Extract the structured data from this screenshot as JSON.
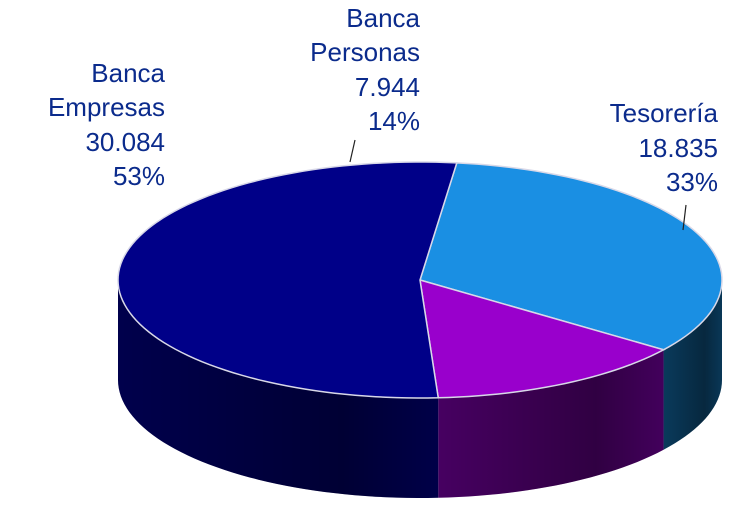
{
  "chart_data": {
    "type": "pie3d",
    "categories": [
      "Tesorería",
      "Banca Personas",
      "Banca Empresas"
    ],
    "values": [
      18.835,
      7.944,
      30.084
    ],
    "percents": [
      33,
      14,
      53
    ],
    "percent_labels": [
      "33%",
      "14%",
      "53%"
    ],
    "colors": [
      "#1a8fe3",
      "#9900cc",
      "#000088"
    ],
    "side_colors": [
      "#0a3d60",
      "#4a0066",
      "#000050"
    ]
  }
}
